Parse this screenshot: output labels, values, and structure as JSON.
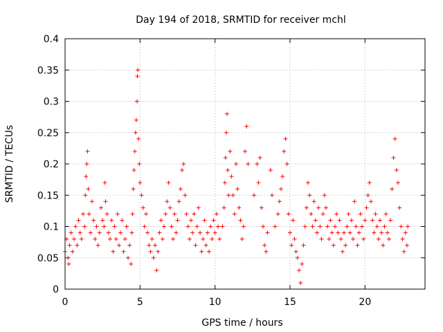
{
  "chart_data": {
    "type": "scatter",
    "title": "Day 194 of 2018, SRMTID for receiver mchl",
    "xlabel": "GPS time / hours",
    "ylabel": "SRMTID / TECUs",
    "xlim": [
      0,
      24
    ],
    "ylim": [
      0,
      0.4
    ],
    "xticks": [
      0,
      5,
      10,
      15,
      20
    ],
    "yticks": [
      0,
      0.05,
      0.1,
      0.15,
      0.2,
      0.25,
      0.3,
      0.35,
      0.4
    ],
    "xtick_labels": [
      "0",
      "5",
      "10",
      "15",
      "20"
    ],
    "ytick_labels": [
      "0",
      "0.05",
      "0.1",
      "0.15",
      "0.2",
      "0.25",
      "0.3",
      "0.35",
      "0.4"
    ],
    "grid": true,
    "marker": "+",
    "color": "#ff0000",
    "series": [
      {
        "name": "SRMTID",
        "points": [
          [
            0.0,
            0.06
          ],
          [
            0.1,
            0.08
          ],
          [
            0.2,
            0.05
          ],
          [
            0.25,
            0.04
          ],
          [
            0.3,
            0.07
          ],
          [
            0.4,
            0.09
          ],
          [
            0.5,
            0.06
          ],
          [
            0.6,
            0.08
          ],
          [
            0.7,
            0.1
          ],
          [
            0.8,
            0.07
          ],
          [
            0.9,
            0.11
          ],
          [
            1.0,
            0.09
          ],
          [
            1.1,
            0.08
          ],
          [
            1.2,
            0.12
          ],
          [
            1.3,
            0.1
          ],
          [
            1.35,
            0.15
          ],
          [
            1.4,
            0.18
          ],
          [
            1.45,
            0.2
          ],
          [
            1.5,
            0.22
          ],
          [
            1.55,
            0.16
          ],
          [
            1.6,
            0.12
          ],
          [
            1.7,
            0.09
          ],
          [
            1.8,
            0.14
          ],
          [
            1.9,
            0.11
          ],
          [
            2.0,
            0.08
          ],
          [
            2.1,
            0.1
          ],
          [
            2.2,
            0.07
          ],
          [
            2.3,
            0.09
          ],
          [
            2.4,
            0.13
          ],
          [
            2.5,
            0.11
          ],
          [
            2.6,
            0.1
          ],
          [
            2.65,
            0.17
          ],
          [
            2.7,
            0.14
          ],
          [
            2.8,
            0.12
          ],
          [
            2.9,
            0.09
          ],
          [
            3.0,
            0.08
          ],
          [
            3.1,
            0.11
          ],
          [
            3.2,
            0.06
          ],
          [
            3.3,
            0.1
          ],
          [
            3.4,
            0.08
          ],
          [
            3.5,
            0.12
          ],
          [
            3.6,
            0.07
          ],
          [
            3.7,
            0.09
          ],
          [
            3.8,
            0.11
          ],
          [
            3.9,
            0.06
          ],
          [
            4.0,
            0.08
          ],
          [
            4.1,
            0.1
          ],
          [
            4.2,
            0.05
          ],
          [
            4.3,
            0.07
          ],
          [
            4.4,
            0.04
          ],
          [
            4.45,
            0.09
          ],
          [
            4.5,
            0.12
          ],
          [
            4.55,
            0.16
          ],
          [
            4.6,
            0.19
          ],
          [
            4.65,
            0.22
          ],
          [
            4.7,
            0.25
          ],
          [
            4.75,
            0.27
          ],
          [
            4.8,
            0.3
          ],
          [
            4.82,
            0.34
          ],
          [
            4.85,
            0.35
          ],
          [
            4.9,
            0.24
          ],
          [
            4.95,
            0.2
          ],
          [
            5.0,
            0.17
          ],
          [
            5.1,
            0.15
          ],
          [
            5.2,
            0.13
          ],
          [
            5.3,
            0.1
          ],
          [
            5.4,
            0.12
          ],
          [
            5.5,
            0.09
          ],
          [
            5.6,
            0.07
          ],
          [
            5.7,
            0.06
          ],
          [
            5.8,
            0.08
          ],
          [
            5.9,
            0.05
          ],
          [
            6.0,
            0.07
          ],
          [
            6.1,
            0.03
          ],
          [
            6.2,
            0.06
          ],
          [
            6.3,
            0.09
          ],
          [
            6.4,
            0.11
          ],
          [
            6.5,
            0.08
          ],
          [
            6.6,
            0.1
          ],
          [
            6.7,
            0.12
          ],
          [
            6.8,
            0.14
          ],
          [
            6.9,
            0.17
          ],
          [
            7.0,
            0.13
          ],
          [
            7.1,
            0.1
          ],
          [
            7.2,
            0.08
          ],
          [
            7.3,
            0.12
          ],
          [
            7.4,
            0.09
          ],
          [
            7.5,
            0.11
          ],
          [
            7.6,
            0.14
          ],
          [
            7.7,
            0.16
          ],
          [
            7.8,
            0.19
          ],
          [
            7.9,
            0.2
          ],
          [
            8.0,
            0.15
          ],
          [
            8.1,
            0.12
          ],
          [
            8.2,
            0.1
          ],
          [
            8.3,
            0.08
          ],
          [
            8.4,
            0.11
          ],
          [
            8.5,
            0.09
          ],
          [
            8.6,
            0.12
          ],
          [
            8.7,
            0.07
          ],
          [
            8.8,
            0.1
          ],
          [
            8.9,
            0.13
          ],
          [
            9.0,
            0.09
          ],
          [
            9.1,
            0.06
          ],
          [
            9.2,
            0.08
          ],
          [
            9.3,
            0.11
          ],
          [
            9.4,
            0.07
          ],
          [
            9.5,
            0.09
          ],
          [
            9.6,
            0.06
          ],
          [
            9.7,
            0.1
          ],
          [
            9.8,
            0.08
          ],
          [
            9.9,
            0.11
          ],
          [
            10.0,
            0.09
          ],
          [
            10.1,
            0.12
          ],
          [
            10.2,
            0.1
          ],
          [
            10.3,
            0.08
          ],
          [
            10.5,
            0.1
          ],
          [
            10.6,
            0.13
          ],
          [
            10.65,
            0.17
          ],
          [
            10.7,
            0.21
          ],
          [
            10.75,
            0.25
          ],
          [
            10.8,
            0.28
          ],
          [
            10.85,
            0.19
          ],
          [
            10.9,
            0.15
          ],
          [
            11.0,
            0.22
          ],
          [
            11.1,
            0.18
          ],
          [
            11.2,
            0.15
          ],
          [
            11.3,
            0.12
          ],
          [
            11.4,
            0.2
          ],
          [
            11.5,
            0.16
          ],
          [
            11.6,
            0.13
          ],
          [
            11.7,
            0.11
          ],
          [
            11.8,
            0.08
          ],
          [
            11.9,
            0.1
          ],
          [
            12.0,
            0.22
          ],
          [
            12.1,
            0.26
          ],
          [
            12.2,
            0.2
          ],
          [
            12.6,
            0.15
          ],
          [
            12.8,
            0.2
          ],
          [
            12.9,
            0.17
          ],
          [
            13.0,
            0.21
          ],
          [
            13.1,
            0.13
          ],
          [
            13.2,
            0.1
          ],
          [
            13.3,
            0.07
          ],
          [
            13.4,
            0.06
          ],
          [
            13.5,
            0.09
          ],
          [
            13.7,
            0.19
          ],
          [
            13.8,
            0.15
          ],
          [
            14.0,
            0.1
          ],
          [
            14.2,
            0.12
          ],
          [
            14.3,
            0.14
          ],
          [
            14.4,
            0.16
          ],
          [
            14.5,
            0.18
          ],
          [
            14.6,
            0.22
          ],
          [
            14.7,
            0.24
          ],
          [
            14.8,
            0.2
          ],
          [
            14.9,
            0.12
          ],
          [
            15.0,
            0.09
          ],
          [
            15.1,
            0.07
          ],
          [
            15.2,
            0.11
          ],
          [
            15.3,
            0.08
          ],
          [
            15.4,
            0.06
          ],
          [
            15.5,
            0.05
          ],
          [
            15.6,
            0.03
          ],
          [
            15.7,
            0.01
          ],
          [
            15.8,
            0.04
          ],
          [
            15.9,
            0.07
          ],
          [
            16.0,
            0.1
          ],
          [
            16.1,
            0.13
          ],
          [
            16.2,
            0.17
          ],
          [
            16.3,
            0.15
          ],
          [
            16.4,
            0.12
          ],
          [
            16.5,
            0.1
          ],
          [
            16.6,
            0.14
          ],
          [
            16.7,
            0.11
          ],
          [
            16.8,
            0.09
          ],
          [
            16.9,
            0.13
          ],
          [
            17.0,
            0.1
          ],
          [
            17.1,
            0.08
          ],
          [
            17.2,
            0.12
          ],
          [
            17.3,
            0.15
          ],
          [
            17.4,
            0.13
          ],
          [
            17.5,
            0.1
          ],
          [
            17.6,
            0.08
          ],
          [
            17.7,
            0.11
          ],
          [
            17.8,
            0.09
          ],
          [
            17.9,
            0.07
          ],
          [
            18.0,
            0.1
          ],
          [
            18.1,
            0.12
          ],
          [
            18.2,
            0.09
          ],
          [
            18.3,
            0.11
          ],
          [
            18.4,
            0.08
          ],
          [
            18.5,
            0.06
          ],
          [
            18.6,
            0.09
          ],
          [
            18.7,
            0.07
          ],
          [
            18.8,
            0.1
          ],
          [
            18.9,
            0.12
          ],
          [
            19.0,
            0.09
          ],
          [
            19.1,
            0.11
          ],
          [
            19.2,
            0.08
          ],
          [
            19.3,
            0.14
          ],
          [
            19.4,
            0.1
          ],
          [
            19.5,
            0.07
          ],
          [
            19.6,
            0.09
          ],
          [
            19.7,
            0.12
          ],
          [
            19.8,
            0.1
          ],
          [
            19.9,
            0.08
          ],
          [
            20.0,
            0.11
          ],
          [
            20.1,
            0.13
          ],
          [
            20.2,
            0.15
          ],
          [
            20.3,
            0.17
          ],
          [
            20.4,
            0.14
          ],
          [
            20.5,
            0.11
          ],
          [
            20.6,
            0.09
          ],
          [
            20.7,
            0.12
          ],
          [
            20.8,
            0.1
          ],
          [
            20.9,
            0.08
          ],
          [
            21.0,
            0.11
          ],
          [
            21.1,
            0.09
          ],
          [
            21.2,
            0.07
          ],
          [
            21.3,
            0.1
          ],
          [
            21.4,
            0.12
          ],
          [
            21.5,
            0.09
          ],
          [
            21.6,
            0.08
          ],
          [
            21.7,
            0.11
          ],
          [
            21.8,
            0.16
          ],
          [
            21.9,
            0.21
          ],
          [
            22.0,
            0.24
          ],
          [
            22.1,
            0.19
          ],
          [
            22.2,
            0.17
          ],
          [
            22.3,
            0.13
          ],
          [
            22.4,
            0.1
          ],
          [
            22.5,
            0.08
          ],
          [
            22.6,
            0.06
          ],
          [
            22.7,
            0.09
          ],
          [
            22.8,
            0.07
          ],
          [
            22.85,
            0.1
          ]
        ]
      }
    ]
  }
}
